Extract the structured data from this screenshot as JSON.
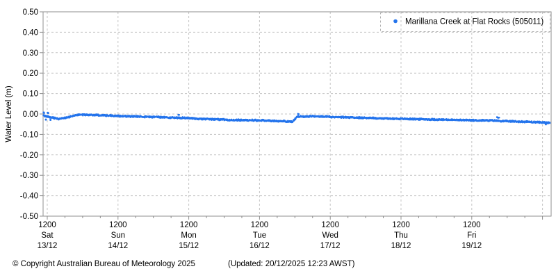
{
  "window": {
    "background": "#ffffff"
  },
  "footer": {
    "copyright": "© Copyright Australian Bureau of Meteorology 2025",
    "updated": "(Updated: 20/12/2025 12:23 AWST)"
  },
  "chart_data": {
    "type": "scatter",
    "title": "",
    "ylabel": "Water Level (m)",
    "xlabel": "",
    "y_range": [
      -0.5,
      0.5
    ],
    "y_tick_step": 0.1,
    "y_tick_labels": [
      "0.50",
      "0.40",
      "0.30",
      "0.20",
      "0.10",
      "0.00",
      "-0.10",
      "-0.20",
      "-0.30",
      "-0.40",
      "-0.50"
    ],
    "x_range_days": [
      -0.055,
      7.105
    ],
    "x_minor_tick_step_days": 0.25,
    "grid": {
      "on": true,
      "style": "dashed",
      "color": "#c4c4c4",
      "frame_color": "#8f8f8f"
    },
    "x_ticks": [
      {
        "t": 0,
        "time": "1200",
        "day": "Sat",
        "date": "13/12"
      },
      {
        "t": 1,
        "time": "1200",
        "day": "Sun",
        "date": "14/12"
      },
      {
        "t": 2,
        "time": "1200",
        "day": "Mon",
        "date": "15/12"
      },
      {
        "t": 3,
        "time": "1200",
        "day": "Tue",
        "date": "16/12"
      },
      {
        "t": 4,
        "time": "1200",
        "day": "Wed",
        "date": "17/12"
      },
      {
        "t": 5,
        "time": "1200",
        "day": "Thu",
        "date": "18/12"
      },
      {
        "t": 6,
        "time": "1200",
        "day": "Fri",
        "date": "19/12"
      },
      {
        "t": 7,
        "time": "",
        "day": "",
        "date": ""
      }
    ],
    "legend": {
      "label": "Marillana Creek at Flat Rocks (505011)",
      "marker": "dot",
      "marker_color": "#2474ec",
      "position": "top-right"
    },
    "series": [
      {
        "name": "Marillana Creek at Flat Rocks (505011)",
        "color": "#2474ec",
        "units": "m",
        "jitter_m": 0.0045,
        "anchors": [
          [
            -0.055,
            -0.008
          ],
          [
            0.02,
            -0.014
          ],
          [
            0.16,
            -0.024
          ],
          [
            0.3,
            -0.016
          ],
          [
            0.42,
            -0.004
          ],
          [
            0.62,
            -0.004
          ],
          [
            0.85,
            -0.008
          ],
          [
            1.1,
            -0.011
          ],
          [
            1.5,
            -0.015
          ],
          [
            1.9,
            -0.019
          ],
          [
            2.2,
            -0.024
          ],
          [
            2.6,
            -0.029
          ],
          [
            3.0,
            -0.031
          ],
          [
            3.3,
            -0.035
          ],
          [
            3.47,
            -0.038
          ],
          [
            3.53,
            -0.013
          ],
          [
            3.75,
            -0.011
          ],
          [
            4.0,
            -0.014
          ],
          [
            4.4,
            -0.018
          ],
          [
            4.8,
            -0.022
          ],
          [
            5.2,
            -0.025
          ],
          [
            5.6,
            -0.028
          ],
          [
            6.0,
            -0.031
          ],
          [
            6.3,
            -0.032
          ],
          [
            6.45,
            -0.035
          ],
          [
            6.75,
            -0.038
          ],
          [
            7.0,
            -0.041
          ],
          [
            7.105,
            -0.044
          ]
        ],
        "noise_spikes": [
          [
            -0.05,
            0.006
          ],
          [
            -0.02,
            -0.028
          ],
          [
            0.01,
            0.005
          ],
          [
            0.05,
            -0.028
          ],
          [
            1.86,
            -0.004
          ],
          [
            3.55,
            -0.001
          ],
          [
            6.36,
            -0.017
          ],
          [
            6.38,
            -0.019
          ],
          [
            7.05,
            -0.05
          ]
        ]
      }
    ]
  }
}
